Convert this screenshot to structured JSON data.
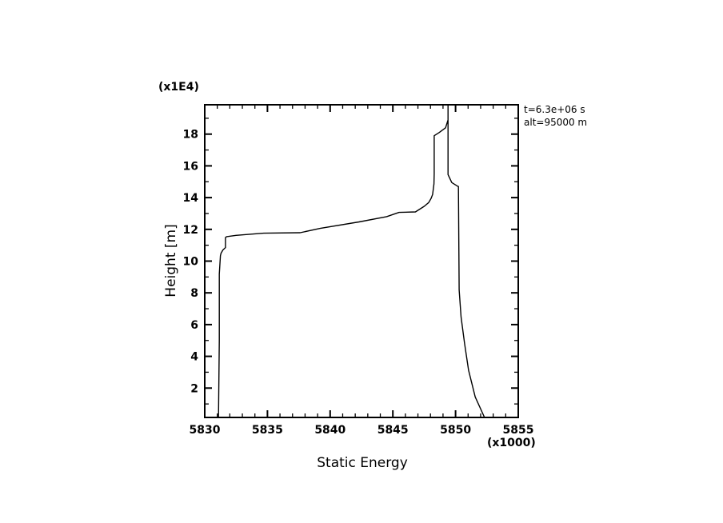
{
  "chart_data": {
    "type": "line",
    "title": "",
    "xlabel": "Static Energy",
    "ylabel": "Height [m]",
    "x_multiplier_label": "(x1000)",
    "y_multiplier_label": "(x1E4)",
    "xlim": [
      5830,
      5855
    ],
    "ylim": [
      0.15,
      19.85
    ],
    "x_ticks": [
      5830,
      5835,
      5840,
      5845,
      5850,
      5855
    ],
    "x_tick_labels": [
      "5830",
      "5835",
      "5840",
      "5845",
      "5850",
      "5855"
    ],
    "y_ticks": [
      2,
      4,
      6,
      8,
      10,
      12,
      14,
      16,
      18
    ],
    "y_tick_labels": [
      "2",
      "4",
      "6",
      "8",
      "10",
      "12",
      "14",
      "16",
      "18"
    ],
    "grid": false,
    "annotations": [
      "t=6.3e+06 s",
      "alt=95000 m"
    ],
    "line_color": "#000000",
    "series": [
      {
        "x": [
          5831.1,
          5831.16,
          5831.16,
          5831.25,
          5831.3,
          5831.45,
          5831.65,
          5831.65,
          5831.75,
          5832.5,
          5834.7,
          5837.6,
          5839.2,
          5842.3,
          5844.5,
          5845.5,
          5846.8,
          5847.5,
          5847.86,
          5848.05,
          5848.17,
          5848.28,
          5848.3,
          5848.3,
          5848.7,
          5849.2,
          5849.4,
          5849.4,
          5849.4,
          5849.4,
          5849.7,
          5850.2,
          5850.23,
          5850.29,
          5850.44,
          5850.72,
          5851.04,
          5851.57,
          5852.31
        ],
        "y": [
          0.15,
          5.0,
          9.18,
          10.34,
          10.5,
          10.7,
          10.85,
          11.48,
          11.54,
          11.62,
          11.76,
          11.79,
          12.06,
          12.47,
          12.8,
          13.07,
          13.1,
          13.45,
          13.69,
          13.95,
          14.19,
          14.86,
          15.5,
          17.9,
          18.1,
          18.4,
          18.9,
          19.85,
          19.85,
          15.45,
          14.95,
          14.7,
          14.7,
          8.18,
          6.48,
          4.8,
          3.12,
          1.44,
          0.15
        ]
      }
    ]
  }
}
